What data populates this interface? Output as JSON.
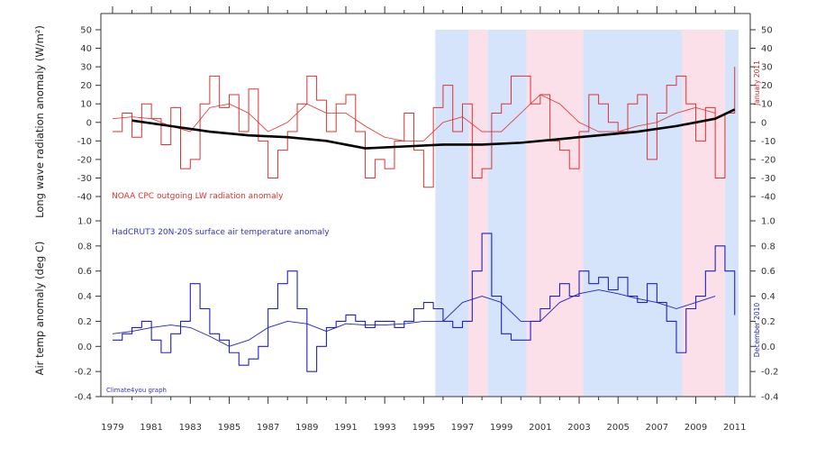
{
  "chart_data": [
    {
      "type": "line",
      "panel": "top",
      "ylabel": "Long wave radiation anomaly (W/m²)",
      "ylim": [
        -40,
        50
      ],
      "yticks": [
        "50",
        "40",
        "30",
        "20",
        "10",
        "0",
        "-10",
        "-20",
        "-30",
        "-40"
      ],
      "annotation": "NOAA CPC outgoing LW radiation anomaly",
      "end_label": "January 2011",
      "colors": {
        "monthly": "#e03030",
        "running_mean": "#e03030",
        "trend": "#000000"
      },
      "series": [
        {
          "x": [
            1979.0,
            1979.5,
            1980.0,
            1980.5,
            1981.0,
            1981.5,
            1982.0,
            1982.5,
            1983.0,
            1983.5,
            1984.0,
            1984.5,
            1985.0,
            1985.5,
            1986.0,
            1986.5,
            1987.0,
            1987.5,
            1988.0,
            1988.5,
            1989.0,
            1989.5,
            1990.0,
            1990.5,
            1991.0,
            1991.5,
            1992.0,
            1992.5,
            1993.0,
            1993.5,
            1994.0,
            1994.5,
            1995.0,
            1995.5,
            1996.0,
            1996.5,
            1997.0,
            1997.5,
            1998.0,
            1998.5,
            1999.0,
            1999.5,
            2000.0,
            2000.5,
            2001.0,
            2001.5,
            2002.0,
            2002.5,
            2003.0,
            2003.5,
            2004.0,
            2004.5,
            2005.0,
            2005.5,
            2006.0,
            2006.5,
            2007.0,
            2007.5,
            2008.0,
            2008.5,
            2009.0,
            2009.5,
            2010.0,
            2010.5,
            2011.0
          ],
          "values": [
            -5,
            5,
            -8,
            10,
            2,
            -12,
            8,
            -25,
            -20,
            10,
            25,
            8,
            15,
            -5,
            18,
            -10,
            -30,
            -15,
            -5,
            10,
            25,
            12,
            -5,
            10,
            15,
            -5,
            -30,
            -20,
            -25,
            -10,
            5,
            -15,
            -35,
            8,
            20,
            -5,
            10,
            -30,
            -25,
            5,
            10,
            25,
            25,
            10,
            15,
            -10,
            -15,
            -25,
            -5,
            15,
            10,
            0,
            -5,
            10,
            15,
            -20,
            5,
            20,
            25,
            10,
            -10,
            8,
            -30,
            5,
            30
          ]
        },
        {
          "x": [
            1979.0,
            1980.0,
            1981.0,
            1982.0,
            1983.0,
            1984.0,
            1985.0,
            1986.0,
            1987.0,
            1988.0,
            1989.0,
            1990.0,
            1991.0,
            1992.0,
            1993.0,
            1994.0,
            1995.0,
            1996.0,
            1997.0,
            1998.0,
            1999.0,
            2000.0,
            2001.0,
            2002.0,
            2003.0,
            2004.0,
            2005.0,
            2006.0,
            2007.0,
            2008.0,
            2009.0,
            2010.0
          ],
          "values": [
            2,
            3,
            2,
            -2,
            -5,
            8,
            10,
            5,
            -5,
            0,
            10,
            5,
            5,
            -2,
            -8,
            -10,
            -10,
            0,
            3,
            -5,
            -5,
            5,
            15,
            10,
            0,
            -5,
            -5,
            -2,
            0,
            5,
            8,
            5
          ]
        },
        {
          "x": [
            1980.0,
            1982.0,
            1984.0,
            1986.0,
            1988.0,
            1990.0,
            1992.0,
            1994.0,
            1996.0,
            1998.0,
            2000.0,
            2002.0,
            2004.0,
            2006.0,
            2008.0,
            2010.0,
            2011.0
          ],
          "values": [
            1,
            -2,
            -5,
            -7,
            -8,
            -10,
            -14,
            -13,
            -12,
            -12,
            -11,
            -9,
            -7,
            -5,
            -2,
            2,
            7
          ]
        }
      ]
    },
    {
      "type": "line",
      "panel": "bottom",
      "ylabel": "Air temp anomaly (deg C)",
      "ylim": [
        -0.4,
        1.0
      ],
      "yticks": [
        "1.0",
        "0.8",
        "0.6",
        "0.4",
        "0.2",
        "0.0",
        "-0.2",
        "-0.4"
      ],
      "annotation": "HadCRUT3 20N-20S surface air temperature anomaly",
      "end_label": "December 2010",
      "credit": "Climate4you graph",
      "colors": {
        "monthly": "#2020c0",
        "running_mean": "#2020c0"
      },
      "series": [
        {
          "x": [
            1979.0,
            1979.5,
            1980.0,
            1980.5,
            1981.0,
            1981.5,
            1982.0,
            1982.5,
            1983.0,
            1983.5,
            1984.0,
            1984.5,
            1985.0,
            1985.5,
            1986.0,
            1986.5,
            1987.0,
            1987.5,
            1988.0,
            1988.5,
            1989.0,
            1989.5,
            1990.0,
            1990.5,
            1991.0,
            1991.5,
            1992.0,
            1992.5,
            1993.0,
            1993.5,
            1994.0,
            1994.5,
            1995.0,
            1995.5,
            1996.0,
            1996.5,
            1997.0,
            1997.5,
            1998.0,
            1998.5,
            1999.0,
            1999.5,
            2000.0,
            2000.5,
            2001.0,
            2001.5,
            2002.0,
            2002.5,
            2003.0,
            2003.5,
            2004.0,
            2004.5,
            2005.0,
            2005.5,
            2006.0,
            2006.5,
            2007.0,
            2007.5,
            2008.0,
            2008.5,
            2009.0,
            2009.5,
            2010.0,
            2010.5,
            2011.0
          ],
          "values": [
            0.05,
            0.1,
            0.15,
            0.2,
            0.05,
            -0.05,
            0.1,
            0.2,
            0.5,
            0.3,
            0.1,
            0.05,
            -0.05,
            -0.15,
            -0.1,
            0.0,
            0.3,
            0.5,
            0.6,
            0.3,
            -0.2,
            0.0,
            0.15,
            0.2,
            0.25,
            0.2,
            0.15,
            0.2,
            0.2,
            0.15,
            0.2,
            0.3,
            0.35,
            0.3,
            0.2,
            0.15,
            0.2,
            0.6,
            0.9,
            0.4,
            0.1,
            0.05,
            0.05,
            0.2,
            0.3,
            0.4,
            0.5,
            0.4,
            0.6,
            0.5,
            0.55,
            0.45,
            0.55,
            0.4,
            0.35,
            0.5,
            0.35,
            0.2,
            -0.05,
            0.3,
            0.4,
            0.6,
            0.8,
            0.6,
            0.25
          ]
        },
        {
          "x": [
            1979.0,
            1980.0,
            1981.0,
            1982.0,
            1983.0,
            1984.0,
            1985.0,
            1986.0,
            1987.0,
            1988.0,
            1989.0,
            1990.0,
            1991.0,
            1992.0,
            1993.0,
            1994.0,
            1995.0,
            1996.0,
            1997.0,
            1998.0,
            1999.0,
            2000.0,
            2001.0,
            2002.0,
            2003.0,
            2004.0,
            2005.0,
            2006.0,
            2007.0,
            2008.0,
            2009.0,
            2010.0
          ],
          "values": [
            0.1,
            0.12,
            0.15,
            0.17,
            0.15,
            0.08,
            0.0,
            0.05,
            0.15,
            0.2,
            0.18,
            0.12,
            0.18,
            0.17,
            0.17,
            0.18,
            0.2,
            0.2,
            0.35,
            0.4,
            0.35,
            0.2,
            0.2,
            0.35,
            0.42,
            0.45,
            0.42,
            0.38,
            0.35,
            0.3,
            0.35,
            0.4
          ]
        }
      ]
    }
  ],
  "x_axis": {
    "xlim": [
      1978.4,
      2011.8
    ],
    "tick_labels": [
      "1979",
      "1981",
      "1983",
      "1985",
      "1987",
      "1989",
      "1991",
      "1993",
      "1995",
      "1997",
      "1999",
      "2001",
      "2003",
      "2005",
      "2007",
      "2009",
      "2011"
    ],
    "tick_values": [
      1979,
      1981,
      1983,
      1985,
      1987,
      1989,
      1991,
      1993,
      1995,
      1997,
      1999,
      2001,
      2003,
      2005,
      2007,
      2009,
      2011
    ]
  },
  "shading": [
    {
      "from": 1995.6,
      "to": 1997.3,
      "phase": "blue",
      "color": "#d6e4fb"
    },
    {
      "from": 1997.3,
      "to": 1998.3,
      "phase": "pink",
      "color": "#fbe0ea"
    },
    {
      "from": 1998.3,
      "to": 2000.3,
      "phase": "blue",
      "color": "#d6e4fb"
    },
    {
      "from": 2000.3,
      "to": 2003.2,
      "phase": "pink",
      "color": "#fbe0ea"
    },
    {
      "from": 2003.2,
      "to": 2008.3,
      "phase": "blue",
      "color": "#d6e4fb"
    },
    {
      "from": 2008.3,
      "to": 2010.5,
      "phase": "pink",
      "color": "#fbe0ea"
    },
    {
      "from": 2010.5,
      "to": 2011.2,
      "phase": "blue",
      "color": "#d6e4fb"
    }
  ]
}
